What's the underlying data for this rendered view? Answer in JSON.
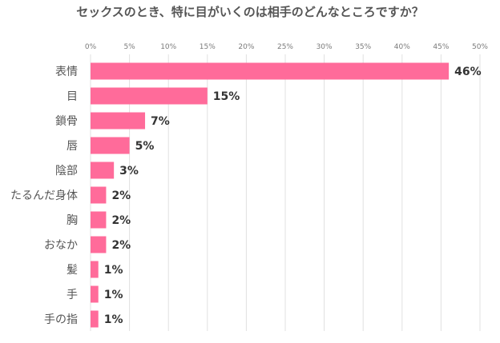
{
  "chart_data": {
    "type": "bar",
    "orientation": "horizontal",
    "title": "セックスのとき、特に目がいくのは相手のどんなところですか？",
    "categories": [
      "表情",
      "目",
      "鎖骨",
      "唇",
      "陰部",
      "たるんだ身体",
      "胸",
      "おなか",
      "髪",
      "手",
      "手の指"
    ],
    "values": [
      46,
      15,
      7,
      5,
      3,
      2,
      2,
      2,
      1,
      1,
      1
    ],
    "value_labels": [
      "46%",
      "15%",
      "7%",
      "5%",
      "3%",
      "2%",
      "2%",
      "2%",
      "1%",
      "1%",
      "1%"
    ],
    "xlim": [
      0,
      50
    ],
    "ticks": [
      "0%",
      "5%",
      "10%",
      "15%",
      "20%",
      "25%",
      "30%",
      "35%",
      "40%",
      "45%",
      "50%"
    ],
    "grid": true,
    "legend": "none",
    "bar_color": "#ff6b9a",
    "grid_color": "#e0e0e0"
  }
}
